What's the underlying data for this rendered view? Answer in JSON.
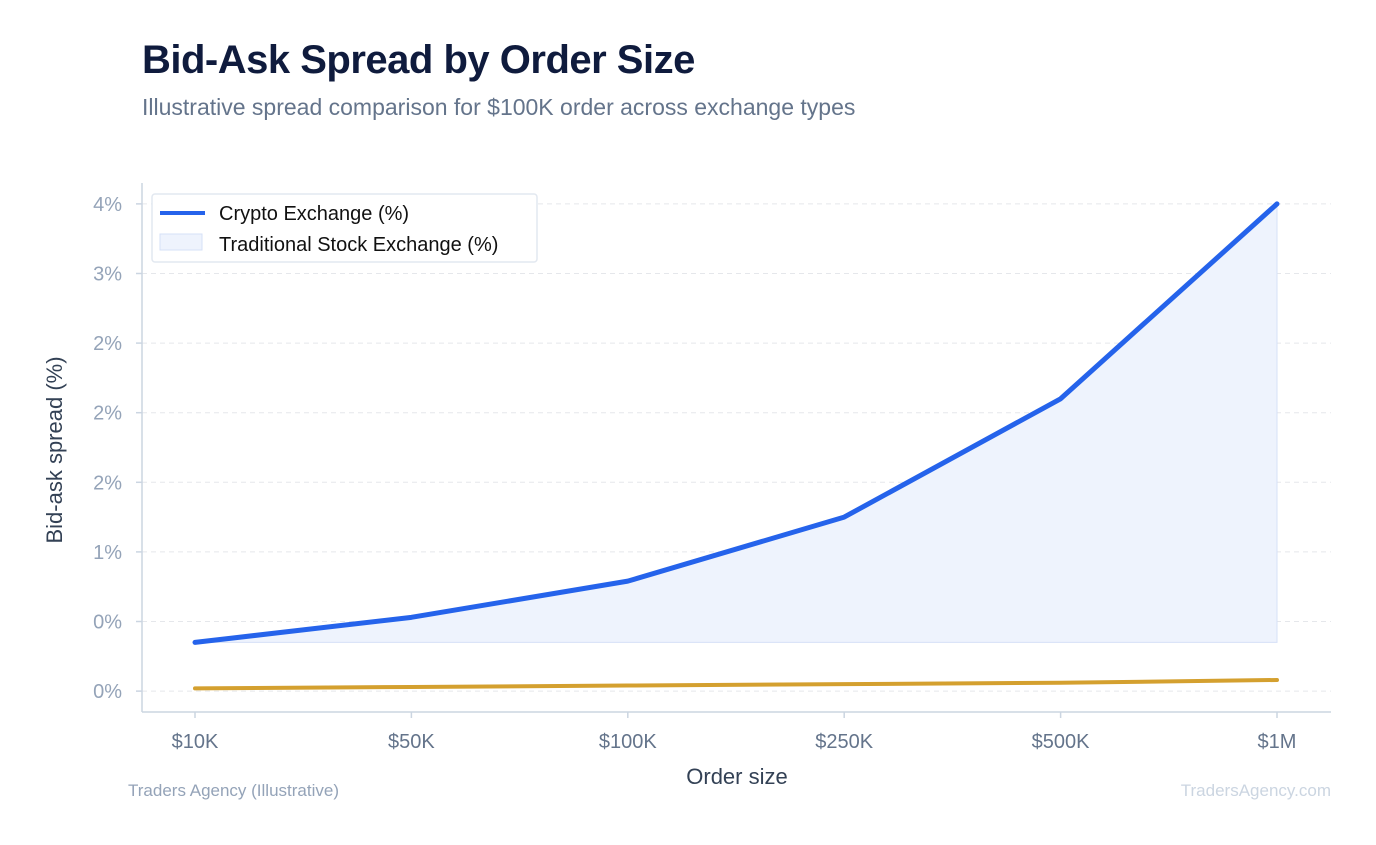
{
  "header": {
    "title": "Bid-Ask Spread by Order Size",
    "subtitle": "Illustrative spread comparison for $100K order across exchange types"
  },
  "footer": {
    "source": "Traders Agency (Illustrative)",
    "site": "TradersAgency.com"
  },
  "colors": {
    "crypto": "#2563eb",
    "crypto_fill": "#eef3fd",
    "traditional": "#d4a02f",
    "grid": "#e5e7eb",
    "axis": "#cbd5e1"
  },
  "chart_data": {
    "type": "line",
    "xlabel": "Order size",
    "ylabel": "Bid-ask spread (%)",
    "categories": [
      "$10K",
      "$50K",
      "$100K",
      "$250K",
      "$500K",
      "$1M"
    ],
    "ylim": [
      -0.15,
      3.65
    ],
    "yticks": [
      0,
      0.5,
      1,
      1.5,
      2,
      2.5,
      3,
      3.5
    ],
    "ytick_labels": [
      "0%",
      "0%",
      "1%",
      "2%",
      "2%",
      "2%",
      "3%",
      "4%"
    ],
    "grid": true,
    "legend_position": "top-left",
    "series": [
      {
        "name": "Crypto Exchange (%)",
        "style": "line",
        "values": [
          0.35,
          0.53,
          0.79,
          1.25,
          2.1,
          3.5
        ]
      },
      {
        "name": "Traditional Stock Exchange (%)",
        "style": "area",
        "values": [
          0.02,
          0.03,
          0.04,
          0.05,
          0.06,
          0.08
        ]
      }
    ]
  }
}
